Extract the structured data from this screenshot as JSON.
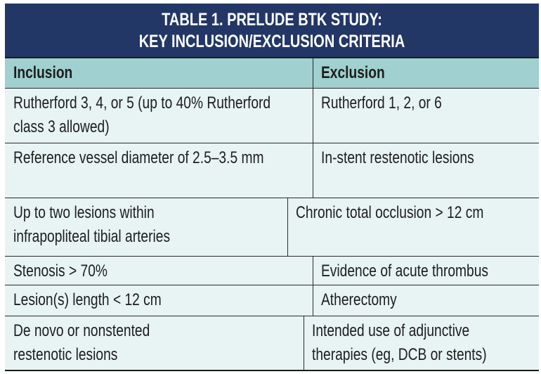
{
  "title": [
    "TABLE 1.  PRELUDE BTK STUDY:",
    "KEY INCLUSION/EXCLUSION CRITERIA"
  ],
  "headers": {
    "inclusion": "Inclusion",
    "exclusion": "Exclusion"
  },
  "rows": [
    {
      "inclusion": [
        "Rutherford 3, 4, or 5 (up to 40% Rutherford",
        "class 3 allowed)"
      ],
      "exclusion": [
        "Rutherford 1, 2, or 6"
      ]
    },
    {
      "inclusion": [
        "Reference vessel diameter of 2.5–3.5 mm"
      ],
      "exclusion": [
        "In-stent restenotic lesions"
      ]
    },
    {
      "inclusion": [
        "Up to two lesions within",
        "infrapopliteal tibial arteries"
      ],
      "exclusion": [
        "Chronic total occlusion > 12 cm"
      ]
    },
    {
      "inclusion": [
        "Stenosis > 70%"
      ],
      "exclusion": [
        "Evidence of acute thrombus"
      ]
    },
    {
      "inclusion": [
        "Lesion(s) length < 12 cm"
      ],
      "exclusion": [
        "Atherectomy"
      ]
    },
    {
      "inclusion": [
        "De novo or nonstented",
        "restenotic lesions"
      ],
      "exclusion": [
        "Intended use of adjunctive",
        "therapies (eg, DCB or stents)"
      ]
    }
  ]
}
